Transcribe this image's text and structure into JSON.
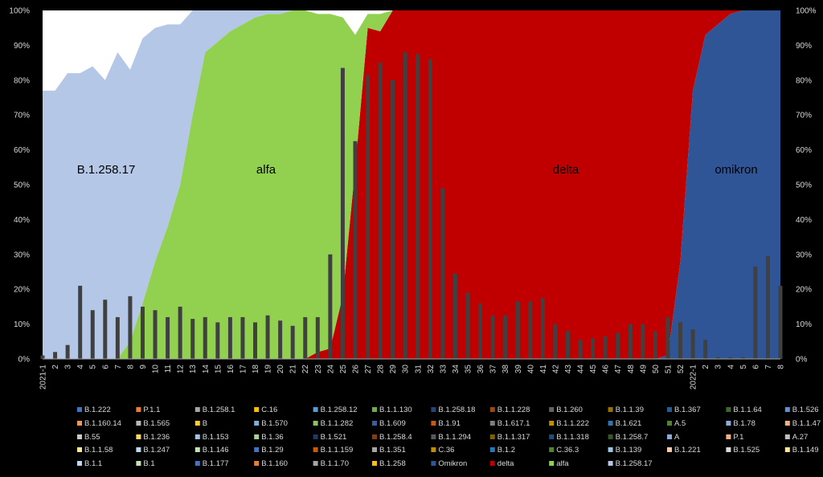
{
  "chart_data": {
    "type": "area",
    "categories": [
      "2021-1",
      "2",
      "3",
      "4",
      "5",
      "6",
      "7",
      "8",
      "9",
      "10",
      "11",
      "12",
      "13",
      "14",
      "15",
      "16",
      "17",
      "18",
      "19",
      "20",
      "21",
      "22",
      "23",
      "24",
      "25",
      "26",
      "27",
      "28",
      "29",
      "30",
      "31",
      "32",
      "33",
      "34",
      "35",
      "36",
      "37",
      "38",
      "39",
      "40",
      "41",
      "42",
      "43",
      "44",
      "45",
      "46",
      "47",
      "48",
      "49",
      "50",
      "51",
      "52",
      "2022-1",
      "2",
      "3",
      "4",
      "5",
      "6",
      "7",
      "8"
    ],
    "ylim": [
      0,
      100
    ],
    "y_ticks": [
      "0%",
      "10%",
      "20%",
      "30%",
      "40%",
      "50%",
      "60%",
      "70%",
      "80%",
      "90%",
      "100%"
    ],
    "series": [
      {
        "name": "Omikron",
        "color": "#2f5597",
        "values": [
          0,
          0,
          0,
          0,
          0,
          0,
          0,
          0,
          0,
          0,
          0,
          0,
          0,
          0,
          0,
          0,
          0,
          0,
          0,
          0,
          0,
          0,
          0,
          0,
          0,
          0,
          0,
          0,
          0,
          0,
          0,
          0,
          0,
          0,
          0,
          0,
          0,
          0,
          0,
          0,
          0,
          0,
          0,
          0,
          0,
          0,
          0,
          0,
          0,
          0,
          1,
          28,
          77,
          93,
          96,
          99,
          100,
          100,
          100,
          100
        ]
      },
      {
        "name": "delta",
        "color": "#c00000",
        "values": [
          0,
          0,
          0,
          0,
          0,
          0,
          0,
          0,
          0,
          0,
          0,
          0,
          0,
          0,
          0,
          0,
          0,
          0,
          0,
          0,
          0,
          0,
          2,
          3,
          18,
          55,
          95,
          94,
          100,
          100,
          100,
          100,
          100,
          100,
          100,
          100,
          100,
          100,
          100,
          100,
          100,
          100,
          100,
          100,
          100,
          100,
          100,
          100,
          100,
          100,
          99,
          72,
          23,
          7,
          4,
          1,
          0,
          0,
          0,
          0
        ]
      },
      {
        "name": "alfa",
        "color": "#92d050",
        "values": [
          0,
          0,
          0,
          0,
          0,
          0,
          0,
          5,
          16,
          28,
          38,
          50,
          70,
          88,
          91,
          94,
          96,
          98,
          99,
          99,
          100,
          100,
          97,
          96,
          80,
          38,
          4,
          5,
          0,
          0,
          0,
          0,
          0,
          0,
          0,
          0,
          0,
          0,
          0,
          0,
          0,
          0,
          0,
          0,
          0,
          0,
          0,
          0,
          0,
          0,
          0,
          0,
          0,
          0,
          0,
          0,
          0,
          0,
          0,
          0
        ]
      },
      {
        "name": "B.1.258.17",
        "color": "#b4c7e7",
        "values": [
          77,
          77,
          82,
          82,
          84,
          80,
          88,
          78,
          76,
          67,
          58,
          46,
          30,
          12,
          9,
          6,
          4,
          2,
          1,
          1,
          0,
          0,
          0,
          0,
          0,
          0,
          0,
          0,
          0,
          0,
          0,
          0,
          0,
          0,
          0,
          0,
          0,
          0,
          0,
          0,
          0,
          0,
          0,
          0,
          0,
          0,
          0,
          0,
          0,
          0,
          0,
          0,
          0,
          0,
          0,
          0,
          0,
          0,
          0,
          0
        ]
      }
    ],
    "bars": {
      "color": "#404040",
      "values": [
        1,
        2,
        4,
        21,
        14,
        17,
        12,
        18,
        15,
        14,
        12,
        15,
        11.5,
        12,
        10.5,
        12,
        12,
        10.5,
        12.5,
        11,
        9.5,
        12,
        12,
        30,
        83.5,
        62.5,
        81.5,
        85,
        80,
        88,
        87.5,
        86,
        49,
        24.5,
        19,
        16,
        12.5,
        12.5,
        16.5,
        16.5,
        17.5,
        10,
        8,
        5.5,
        6,
        6.5,
        7.5,
        10,
        10,
        8,
        12,
        10.5,
        8.5,
        5.5,
        0.5,
        0.5,
        0.5,
        26.5,
        29.5,
        21
      ]
    },
    "annotations": [
      "B.1.258.17",
      "alfa",
      "delta",
      "omikron"
    ],
    "legend_position": "bottom",
    "legend": [
      {
        "name": "B.1.222",
        "color": "#4472c4"
      },
      {
        "name": "P.1.1",
        "color": "#ed7d31"
      },
      {
        "name": "B.1.258.1",
        "color": "#a5a5a5"
      },
      {
        "name": "C.16",
        "color": "#ffc000"
      },
      {
        "name": "B.1.258.12",
        "color": "#5b9bd5"
      },
      {
        "name": "B.1.1.130",
        "color": "#70ad47"
      },
      {
        "name": "B.1.258.18",
        "color": "#264478"
      },
      {
        "name": "B.1.1.228",
        "color": "#9e480e"
      },
      {
        "name": "B.1.260",
        "color": "#636363"
      },
      {
        "name": "B.1.1.39",
        "color": "#997300"
      },
      {
        "name": "B.1.367",
        "color": "#255e91"
      },
      {
        "name": "B.1.1.64",
        "color": "#43682b"
      },
      {
        "name": "B.1.526",
        "color": "#698ed0"
      },
      {
        "name": "B.1.160.14",
        "color": "#f1975a"
      },
      {
        "name": "B.1.565",
        "color": "#b7b7b7"
      },
      {
        "name": "B",
        "color": "#ffcd33"
      },
      {
        "name": "B.1.570",
        "color": "#7cafdd"
      },
      {
        "name": "B.1.1.282",
        "color": "#8cc168"
      },
      {
        "name": "B.1.609",
        "color": "#3a5ba0"
      },
      {
        "name": "B.1.91",
        "color": "#c55a11"
      },
      {
        "name": "B.1.617.1",
        "color": "#7f7f7f"
      },
      {
        "name": "B.1.1.222",
        "color": "#bf9000"
      },
      {
        "name": "B.1.621",
        "color": "#2e75b6"
      },
      {
        "name": "A.5",
        "color": "#548235"
      },
      {
        "name": "B.1.78",
        "color": "#8faadc"
      },
      {
        "name": "B.1.1.47",
        "color": "#f4b183"
      },
      {
        "name": "B.55",
        "color": "#c9c9c9"
      },
      {
        "name": "B.1.236",
        "color": "#ffd966"
      },
      {
        "name": "B.1.153",
        "color": "#9dc3e6"
      },
      {
        "name": "B.1.36",
        "color": "#a9d18e"
      },
      {
        "name": "B.1.521",
        "color": "#203864"
      },
      {
        "name": "B.1.258.4",
        "color": "#843c0c"
      },
      {
        "name": "B.1.1.294",
        "color": "#595959"
      },
      {
        "name": "B.1.1.317",
        "color": "#7f6000"
      },
      {
        "name": "B.1.1.318",
        "color": "#1f4e79"
      },
      {
        "name": "B.1.258.7",
        "color": "#385723"
      },
      {
        "name": "A",
        "color": "#8eaadb"
      },
      {
        "name": "P.1",
        "color": "#f4b183"
      },
      {
        "name": "A.27",
        "color": "#bfbfbf"
      },
      {
        "name": "B.1.1.58",
        "color": "#ffe699"
      },
      {
        "name": "B.1.247",
        "color": "#bdd7ee"
      },
      {
        "name": "B.1.146",
        "color": "#c5e0b4"
      },
      {
        "name": "B.1.29",
        "color": "#4472c4"
      },
      {
        "name": "B.1.1.159",
        "color": "#c55a11"
      },
      {
        "name": "B.1.351",
        "color": "#a5a5a5"
      },
      {
        "name": "C.36",
        "color": "#bf9000"
      },
      {
        "name": "B.1.2",
        "color": "#2e75b6"
      },
      {
        "name": "C.36.3",
        "color": "#548235"
      },
      {
        "name": "B.1.139",
        "color": "#9dc3e6"
      },
      {
        "name": "B.1.221",
        "color": "#f8cbad"
      },
      {
        "name": "B.1.525",
        "color": "#dbdbdb"
      },
      {
        "name": "B.1.149",
        "color": "#ffe699"
      },
      {
        "name": "B.1.1",
        "color": "#bdd7ee"
      },
      {
        "name": "B.1",
        "color": "#c5e0b4"
      },
      {
        "name": "B.1.177",
        "color": "#4472c4"
      },
      {
        "name": "B.1.160",
        "color": "#ed7d31"
      },
      {
        "name": "B.1.1.70",
        "color": "#a5a5a5"
      },
      {
        "name": "B.1.258",
        "color": "#ffc000"
      },
      {
        "name": "Omikron",
        "color": "#2f5597"
      },
      {
        "name": "delta",
        "color": "#c00000"
      },
      {
        "name": "alfa",
        "color": "#92d050"
      },
      {
        "name": "B.1.258.17",
        "color": "#b4c7e7"
      }
    ]
  }
}
